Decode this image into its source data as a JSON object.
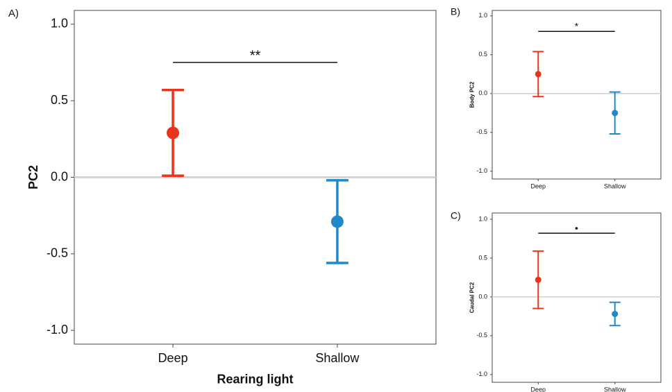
{
  "chart_data": [
    {
      "type": "errorbar",
      "panel_label": "A)",
      "ylabel": "PC2",
      "xlabel": "Rearing light",
      "categories": [
        "Deep",
        "Shallow"
      ],
      "values": [
        0.29,
        -0.29
      ],
      "errors": [
        0.28,
        0.27
      ],
      "colors": [
        "#e8341c",
        "#1f8ac9"
      ],
      "ylim": [
        -1.09,
        1.09
      ],
      "yticks": [
        {
          "value": -1,
          "label": "-1.0"
        },
        {
          "value": -0.5,
          "label": "-0.5"
        },
        {
          "value": 0,
          "label": "0.0"
        },
        {
          "value": 0.5,
          "label": "0.5"
        },
        {
          "value": 1,
          "label": "1.0"
        }
      ],
      "hline": 0,
      "annotation": {
        "text": "**",
        "y": 0.75
      }
    },
    {
      "type": "errorbar",
      "panel_label": "B)",
      "ylabel": "Body PC2",
      "categories": [
        "Deep",
        "Shallow"
      ],
      "values": [
        0.25,
        -0.25
      ],
      "errors": [
        0.29,
        0.27
      ],
      "colors": [
        "#e8341c",
        "#1f8ac9"
      ],
      "ylim": [
        -1.1,
        1.07
      ],
      "yticks": [
        {
          "value": -1,
          "label": "-1.0"
        },
        {
          "value": -0.5,
          "label": "-0.5"
        },
        {
          "value": 0,
          "label": "0.0"
        },
        {
          "value": 0.5,
          "label": "0.5"
        },
        {
          "value": 1,
          "label": "1.0"
        }
      ],
      "hline": 0,
      "annotation": {
        "text": "*",
        "y": 0.8
      }
    },
    {
      "type": "errorbar",
      "panel_label": "C)",
      "ylabel": "Caudal PC2",
      "categories": [
        "Deep",
        "Shallow"
      ],
      "values": [
        0.22,
        -0.22
      ],
      "errors": [
        0.37,
        0.15
      ],
      "colors": [
        "#e8341c",
        "#1f8ac9"
      ],
      "ylim": [
        -1.1,
        1.08
      ],
      "yticks": [
        {
          "value": -1,
          "label": "-1.0"
        },
        {
          "value": -0.5,
          "label": "-0.5"
        },
        {
          "value": 0,
          "label": "0.0"
        },
        {
          "value": 0.5,
          "label": "0.5"
        },
        {
          "value": 1,
          "label": "1.0"
        }
      ],
      "hline": 0,
      "annotation": {
        "text": "•",
        "y": 0.82
      }
    }
  ]
}
